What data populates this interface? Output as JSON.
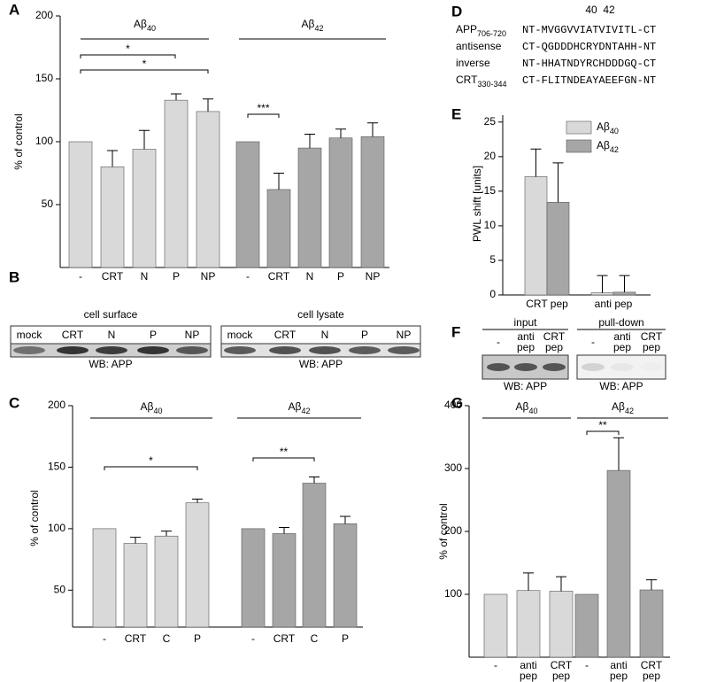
{
  "panel_labels": [
    "A",
    "B",
    "C",
    "D",
    "E",
    "F",
    "G"
  ],
  "chart_data": [
    {
      "type": "bar",
      "ylabel": "% of control",
      "ylim": [
        0,
        200
      ],
      "yticks": [
        50,
        100,
        150,
        200
      ],
      "groups": [
        {
          "name": "Aβ",
          "sub": "40",
          "color": "#d9d9d9",
          "categories": [
            "-",
            "CRT",
            "N",
            "P",
            "NP"
          ],
          "values": [
            100,
            80,
            94,
            133,
            124
          ],
          "errors": [
            null,
            13,
            15,
            5,
            10
          ]
        },
        {
          "name": "Aβ",
          "sub": "42",
          "color": "#a6a6a6",
          "categories": [
            "-",
            "CRT",
            "N",
            "P",
            "NP"
          ],
          "values": [
            100,
            62,
            95,
            103,
            104
          ],
          "errors": [
            null,
            13,
            11,
            7,
            11
          ]
        }
      ],
      "annotations": [
        "*",
        "*",
        "***"
      ]
    },
    {
      "type": "bar",
      "ylabel": "% of control",
      "ylim": [
        20,
        200
      ],
      "yticks": [
        50,
        100,
        150,
        200
      ],
      "groups": [
        {
          "name": "Aβ",
          "sub": "40",
          "color": "#d9d9d9",
          "categories": [
            "-",
            "CRT",
            "C",
            "P"
          ],
          "values": [
            100,
            88,
            94,
            121
          ],
          "errors": [
            null,
            5,
            4,
            3
          ]
        },
        {
          "name": "Aβ",
          "sub": "42",
          "color": "#a6a6a6",
          "categories": [
            "-",
            "CRT",
            "C",
            "P"
          ],
          "values": [
            100,
            96,
            137,
            104
          ],
          "errors": [
            null,
            5,
            5,
            6
          ]
        }
      ],
      "annotations": [
        "*",
        "**"
      ]
    },
    {
      "type": "grouped_bar",
      "ylabel": "PWL shift  [units]",
      "ylim": [
        0,
        26
      ],
      "yticks": [
        0,
        5,
        10,
        15,
        20,
        25
      ],
      "categories": [
        "CRT pep",
        "anti pep"
      ],
      "series": [
        {
          "name": "Aβ",
          "sub": "40",
          "color": "#d9d9d9",
          "values": [
            17.1,
            0.3
          ],
          "errors": [
            4,
            2.5
          ]
        },
        {
          "name": "Aβ",
          "sub": "42",
          "color": "#a6a6a6",
          "values": [
            13.4,
            0.4
          ],
          "errors": [
            5.7,
            2.4
          ]
        }
      ]
    },
    {
      "type": "bar",
      "ylabel": "% of control",
      "ylim": [
        0,
        400
      ],
      "yticks": [
        100,
        200,
        300,
        400
      ],
      "groups": [
        {
          "name": "Aβ",
          "sub": "40",
          "color": "#d9d9d9",
          "categories": [
            [
              "-"
            ],
            [
              "anti",
              "pep"
            ],
            [
              "CRT",
              "pep"
            ]
          ],
          "values": [
            100,
            106,
            105
          ],
          "errors": [
            null,
            28,
            23
          ]
        },
        {
          "name": "Aβ",
          "sub": "42",
          "color": "#a6a6a6",
          "categories": [
            [
              "-"
            ],
            [
              "anti",
              "pep"
            ],
            [
              "CRT",
              "pep"
            ]
          ],
          "values": [
            100,
            297,
            107
          ],
          "errors": [
            null,
            52,
            16
          ]
        }
      ],
      "annotations": [
        "**"
      ]
    }
  ],
  "blot_b": {
    "panels": [
      {
        "title": "cell surface",
        "lanes": [
          "mock",
          "CRT",
          "N",
          "P",
          "NP"
        ],
        "footer": "WB: APP"
      },
      {
        "title": "cell lysate",
        "lanes": [
          "mock",
          "CRT",
          "N",
          "P",
          "NP"
        ],
        "footer": "WB: APP"
      }
    ]
  },
  "blot_f": {
    "panels": [
      {
        "title": "input",
        "lanes": [
          [
            "-"
          ],
          [
            "anti",
            "pep"
          ],
          [
            "CRT",
            "pep"
          ]
        ],
        "footer": "WB: APP"
      },
      {
        "title": "pull-down",
        "lanes": [
          [
            "-"
          ],
          [
            "anti",
            "pep"
          ],
          [
            "CRT",
            "pep"
          ]
        ],
        "footer": "WB: APP"
      }
    ]
  },
  "sequences": {
    "positions": [
      "40",
      "42"
    ],
    "rows": [
      {
        "label": "APP",
        "sub": "706-720",
        "sequence": "NT-MVGGVVIATVIVITL-CT"
      },
      {
        "label": "antisense",
        "sequence": "CT-QGDDDHCRYDNTAHH-NT"
      },
      {
        "label": "inverse",
        "sequence": "NT-HHATNDYRCHDDDGQ-CT"
      },
      {
        "label": "CRT",
        "sub": "330-344",
        "sequence": "CT-FLITNDEAYAEEFGN-NT"
      }
    ]
  }
}
